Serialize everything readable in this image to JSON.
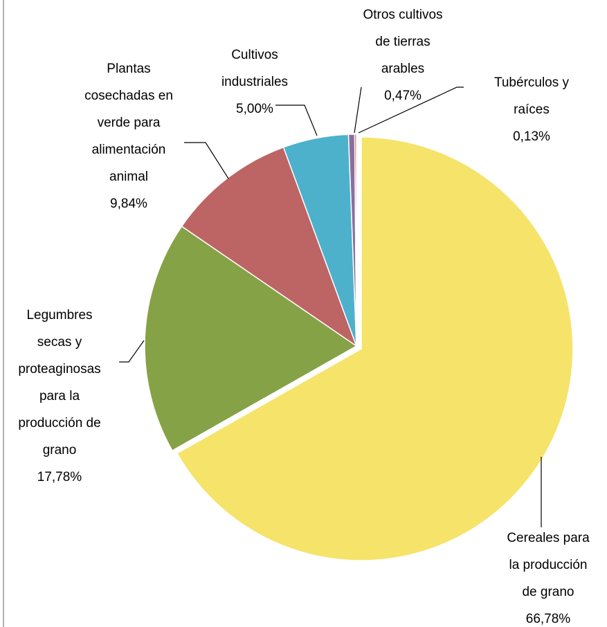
{
  "chart_data": {
    "type": "pie",
    "categories": [
      "Cereales para la producción de grano",
      "Legumbres secas y proteaginosas para la producción de grano",
      "Plantas cosechadas en verde para alimentación animal",
      "Cultivos industriales",
      "Otros cultivos de tierras arables",
      "Tubérculos y raíces"
    ],
    "values": [
      66.78,
      17.78,
      9.84,
      5.0,
      0.47,
      0.13
    ],
    "value_labels": [
      "66,78%",
      "17,78%",
      "9,84%",
      "5,00%",
      "0,47%",
      "0,13%"
    ],
    "colors": [
      "#f6e36a",
      "#86a246",
      "#bd6464",
      "#4db1cc",
      "#8a6f9e",
      "#c0504d"
    ]
  }
}
